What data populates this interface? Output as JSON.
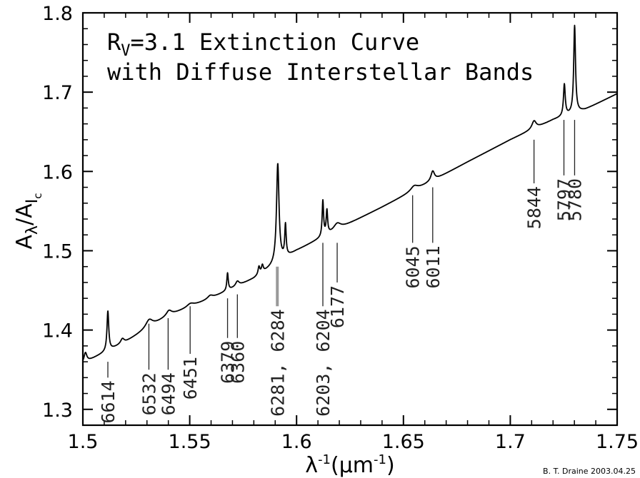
{
  "chart_data": {
    "type": "line",
    "title_lines": [
      "R_V=3.1 Extinction Curve",
      "with Diffuse Interstellar Bands"
    ],
    "title_parts": {
      "r": "R",
      "v_sub": "V",
      "rest": "=3.1 Extinction Curve",
      "line2": "with Diffuse Interstellar Bands"
    },
    "xlabel": "λ⁻¹(μm⁻¹)",
    "xlabel_parts": {
      "main": "λ",
      "exp1": "-1",
      "mid": "(μm",
      "exp2": "-1",
      "end": ")"
    },
    "ylabel": "A_λ/A_Ic",
    "ylabel_parts": {
      "a1": "A",
      "sub1": "λ",
      "slash": "/A",
      "sub2": "I",
      "sub3": "c"
    },
    "xlim": [
      1.5,
      1.75
    ],
    "ylim": [
      1.28,
      1.8
    ],
    "xticks": [
      1.5,
      1.55,
      1.6,
      1.65,
      1.7,
      1.75
    ],
    "xtick_labels": [
      "1.5",
      "1.55",
      "1.6",
      "1.65",
      "1.7",
      "1.75"
    ],
    "yticks": [
      1.3,
      1.4,
      1.5,
      1.6,
      1.7,
      1.8
    ],
    "ytick_labels": [
      "1.3",
      "1.4",
      "1.5",
      "1.6",
      "1.7",
      "1.8"
    ],
    "grid": false,
    "continuum": [
      [
        1.5,
        1.358
      ],
      [
        1.52,
        1.385
      ],
      [
        1.54,
        1.418
      ],
      [
        1.56,
        1.44
      ],
      [
        1.58,
        1.465
      ],
      [
        1.6,
        1.5
      ],
      [
        1.62,
        1.528
      ],
      [
        1.64,
        1.555
      ],
      [
        1.66,
        1.583
      ],
      [
        1.68,
        1.612
      ],
      [
        1.7,
        1.64
      ],
      [
        1.72,
        1.665
      ],
      [
        1.735,
        1.678
      ],
      [
        1.75,
        1.698
      ]
    ],
    "bands": [
      {
        "x": 1.5012,
        "depth": 0.012,
        "width": 0.0008
      },
      {
        "x": 1.5117,
        "depth": 0.05,
        "width": 0.0005
      },
      {
        "x": 1.5185,
        "depth": 0.006,
        "width": 0.001
      },
      {
        "x": 1.531,
        "depth": 0.01,
        "width": 0.002
      },
      {
        "x": 1.5403,
        "depth": 0.006,
        "width": 0.0015
      },
      {
        "x": 1.5503,
        "depth": 0.004,
        "width": 0.002
      },
      {
        "x": 1.5596,
        "depth": 0.004,
        "width": 0.0015
      },
      {
        "x": 1.5677,
        "depth": 0.022,
        "width": 0.0004
      },
      {
        "x": 1.5723,
        "depth": 0.006,
        "width": 0.001
      },
      {
        "x": 1.5824,
        "depth": 0.01,
        "width": 0.0005
      },
      {
        "x": 1.584,
        "depth": 0.009,
        "width": 0.0005
      },
      {
        "x": 1.5912,
        "depth": 0.125,
        "width": 0.0007
      },
      {
        "x": 1.5948,
        "depth": 0.04,
        "width": 0.0004
      },
      {
        "x": 1.6123,
        "depth": 0.045,
        "width": 0.0004
      },
      {
        "x": 1.6142,
        "depth": 0.03,
        "width": 0.0004
      },
      {
        "x": 1.619,
        "depth": 0.008,
        "width": 0.002
      },
      {
        "x": 1.655,
        "depth": 0.006,
        "width": 0.002
      },
      {
        "x": 1.6637,
        "depth": 0.012,
        "width": 0.001
      },
      {
        "x": 1.7111,
        "depth": 0.01,
        "width": 0.0012
      },
      {
        "x": 1.7253,
        "depth": 0.04,
        "width": 0.0005
      },
      {
        "x": 1.7301,
        "depth": 0.11,
        "width": 0.0005
      }
    ],
    "band_labels": [
      {
        "text": "6614",
        "x": 1.5117,
        "y_top": 1.36,
        "y_bot": 1.34
      },
      {
        "text": "6532",
        "x": 1.5309,
        "y_top": 1.408,
        "y_bot": 1.35
      },
      {
        "text": "6494",
        "x": 1.5399,
        "y_top": 1.415,
        "y_bot": 1.35
      },
      {
        "text": "6451",
        "x": 1.5502,
        "y_top": 1.43,
        "y_bot": 1.37
      },
      {
        "text": "6379",
        "x": 1.5677,
        "y_top": 1.44,
        "y_bot": 1.39
      },
      {
        "text": "6360",
        "x": 1.5723,
        "y_top": 1.445,
        "y_bot": 1.39
      },
      {
        "text": "6281, 6284",
        "x": 1.591,
        "y_top": 1.48,
        "y_bot": 1.43,
        "thick": true
      },
      {
        "text": "6203, 6204",
        "x": 1.6123,
        "y_top": 1.51,
        "y_bot": 1.43
      },
      {
        "text": "6177",
        "x": 1.619,
        "y_top": 1.51,
        "y_bot": 1.46
      },
      {
        "text": "6045",
        "x": 1.6543,
        "y_top": 1.57,
        "y_bot": 1.51
      },
      {
        "text": "6011",
        "x": 1.6637,
        "y_top": 1.58,
        "y_bot": 1.51
      },
      {
        "text": "5844",
        "x": 1.7111,
        "y_top": 1.64,
        "y_bot": 1.585
      },
      {
        "text": "5797",
        "x": 1.7251,
        "y_top": 1.665,
        "y_bot": 1.595
      },
      {
        "text": "5780",
        "x": 1.7301,
        "y_top": 1.665,
        "y_bot": 1.595
      }
    ],
    "credit": "B. T. Draine  2003.04.25"
  }
}
